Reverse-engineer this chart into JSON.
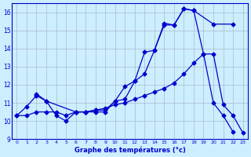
{
  "title": "Graphe des températures (°c)",
  "bg_color": "#cceeff",
  "grid_color": "#aabbcc",
  "line_color": "#0000cc",
  "xlim": [
    -0.5,
    23.5
  ],
  "ylim": [
    9,
    16.5
  ],
  "xticks": [
    0,
    1,
    2,
    3,
    4,
    5,
    6,
    7,
    8,
    9,
    10,
    11,
    12,
    13,
    14,
    15,
    16,
    17,
    18,
    19,
    20,
    21,
    22,
    23
  ],
  "yticks": [
    9,
    10,
    11,
    12,
    13,
    14,
    15,
    16
  ],
  "line1_x": [
    0,
    1,
    2,
    3,
    4,
    5,
    6,
    7,
    8,
    9,
    10,
    11,
    12,
    13,
    14,
    15,
    16,
    17,
    18,
    19,
    20,
    21,
    22
  ],
  "line1_y": [
    10.3,
    10.8,
    11.4,
    11.1,
    10.3,
    10.0,
    10.5,
    10.5,
    10.5,
    10.5,
    11.1,
    11.2,
    12.2,
    13.8,
    13.9,
    15.3,
    15.3,
    16.2,
    16.1,
    13.7,
    11.0,
    10.3,
    9.4
  ],
  "line2_x": [
    2,
    3,
    6,
    7,
    8,
    9,
    10,
    11,
    12,
    13,
    14,
    15,
    16,
    17,
    18,
    20,
    22
  ],
  "line2_y": [
    11.5,
    11.1,
    10.5,
    10.5,
    10.6,
    10.6,
    11.1,
    11.9,
    12.2,
    12.6,
    13.9,
    15.4,
    15.3,
    16.2,
    16.1,
    15.35,
    15.35
  ],
  "line3_x": [
    0,
    1,
    2,
    3,
    4,
    5,
    6,
    7,
    8,
    9,
    10,
    11,
    12,
    13,
    14,
    15,
    16,
    17,
    18,
    19,
    20,
    21,
    22,
    23
  ],
  "line3_y": [
    10.3,
    10.3,
    10.5,
    10.5,
    10.5,
    10.3,
    10.5,
    10.5,
    10.6,
    10.7,
    10.9,
    11.0,
    11.2,
    11.4,
    11.6,
    11.8,
    12.1,
    12.6,
    13.2,
    13.7,
    13.7,
    10.9,
    10.3,
    9.35
  ]
}
